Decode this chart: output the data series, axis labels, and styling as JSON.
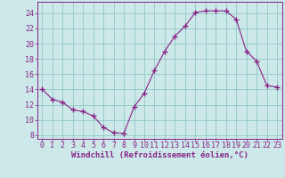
{
  "x": [
    0,
    1,
    2,
    3,
    4,
    5,
    6,
    7,
    8,
    9,
    10,
    11,
    12,
    13,
    14,
    15,
    16,
    17,
    18,
    19,
    20,
    21,
    22,
    23
  ],
  "y": [
    14.0,
    12.7,
    12.3,
    11.3,
    11.1,
    10.5,
    9.0,
    8.3,
    8.2,
    11.7,
    13.5,
    16.5,
    19.0,
    21.0,
    22.3,
    24.1,
    24.3,
    24.3,
    24.3,
    23.2,
    19.0,
    17.7,
    14.5,
    14.3
  ],
  "line_color": "#882288",
  "marker": "P",
  "marker_size": 2.5,
  "bg_color": "#cce8e8",
  "grid_color": "#99cccc",
  "xlabel": "Windchill (Refroidissement éolien,°C)",
  "ylabel": "",
  "xlim": [
    -0.5,
    23.5
  ],
  "ylim": [
    7.5,
    25.5
  ],
  "yticks": [
    8,
    10,
    12,
    14,
    16,
    18,
    20,
    22,
    24
  ],
  "xticks": [
    0,
    1,
    2,
    3,
    4,
    5,
    6,
    7,
    8,
    9,
    10,
    11,
    12,
    13,
    14,
    15,
    16,
    17,
    18,
    19,
    20,
    21,
    22,
    23
  ],
  "line_color_hex": "#882288",
  "tick_label_color": "#882288",
  "xlabel_color": "#882288",
  "xlabel_fontsize": 6.5,
  "tick_fontsize": 6.0
}
